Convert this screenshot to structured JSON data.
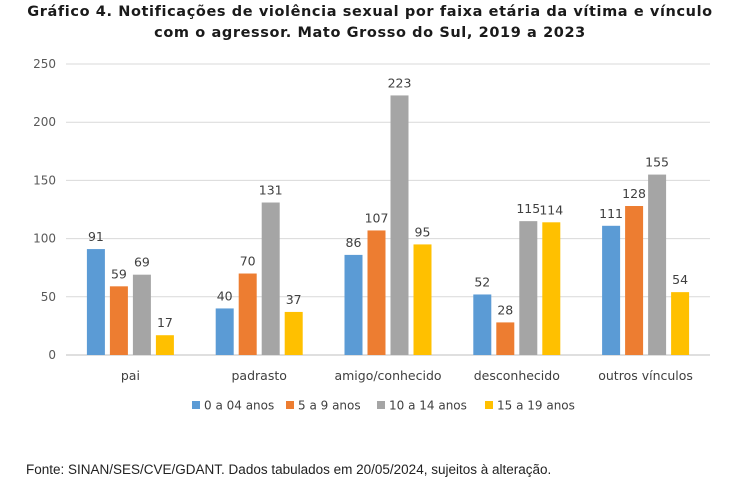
{
  "chart_data": {
    "type": "bar",
    "title_line1": "Gráfico 4. Notificações de violência sexual por faixa etária da vítima e vínculo",
    "title_line2": "com o agressor. Mato Grosso do Sul, 2019 a 2023",
    "categories": [
      "pai",
      "padrasto",
      "amigo/conhecido",
      "desconhecido",
      "outros vínculos"
    ],
    "series": [
      {
        "name": "0 a 04 anos",
        "color": "#5b9bd5",
        "values": [
          91,
          40,
          86,
          52,
          111
        ]
      },
      {
        "name": "5 a 9 anos",
        "color": "#ed7d31",
        "values": [
          59,
          70,
          107,
          28,
          128
        ]
      },
      {
        "name": "10 a 14 anos",
        "color": "#a5a5a5",
        "values": [
          69,
          131,
          223,
          115,
          155
        ]
      },
      {
        "name": "15 a 19 anos",
        "color": "#ffc000",
        "values": [
          17,
          37,
          95,
          114,
          54
        ]
      }
    ],
    "ylim": [
      0,
      250
    ],
    "yticks": [
      0,
      50,
      100,
      150,
      200,
      250
    ],
    "grid": true,
    "legend_position": "bottom"
  },
  "source_note": "Fonte: SINAN/SES/CVE/GDANT. Dados tabulados em 20/05/2024, sujeitos à alteração."
}
